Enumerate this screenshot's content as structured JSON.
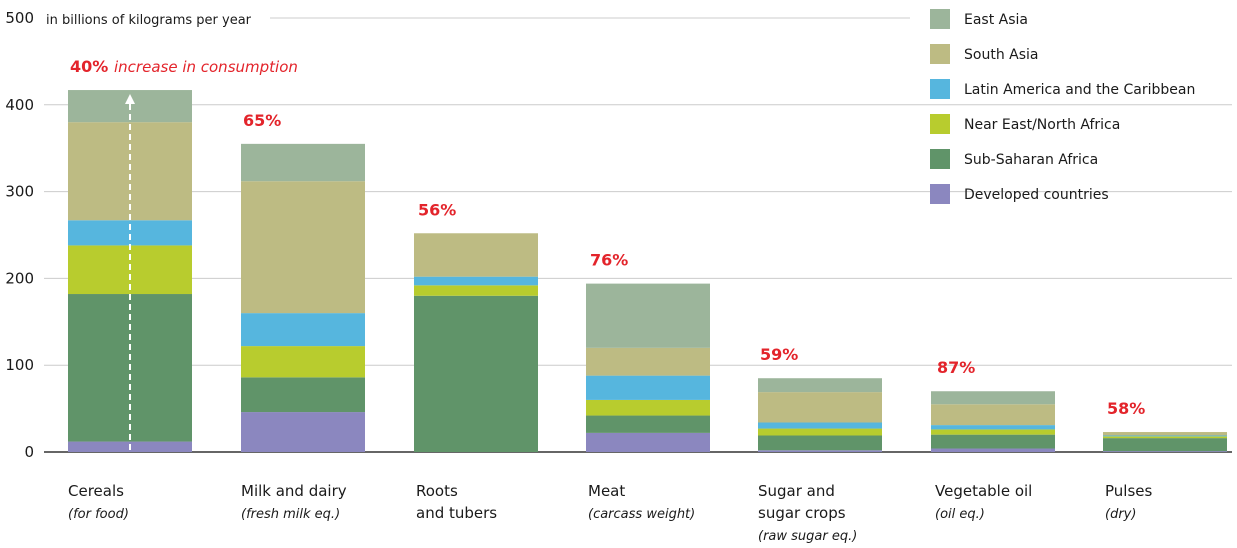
{
  "chart_data": {
    "type": "bar",
    "stacked": true,
    "unit_label": "in billions of kilograms per year",
    "ylim": [
      0,
      500
    ],
    "yticks": [
      0,
      100,
      200,
      300,
      400,
      500
    ],
    "grid": true,
    "legend_position": "top-right",
    "annotation": {
      "category_index": 0,
      "percent": "40%",
      "text": "increase in consumption"
    },
    "categories": [
      {
        "name": "Cereals",
        "sub": "(for food)",
        "increase": "40%"
      },
      {
        "name": "Milk and dairy",
        "sub": "(fresh milk eq.)",
        "increase": "65%"
      },
      {
        "name": "Roots",
        "name2": "and tubers",
        "sub": "",
        "increase": "56%"
      },
      {
        "name": "Meat",
        "sub": "(carcass weight)",
        "increase": "76%"
      },
      {
        "name": "Sugar and",
        "name2": "sugar crops",
        "sub": "(raw sugar eq.)",
        "increase": "59%"
      },
      {
        "name": "Vegetable oil",
        "sub": "(oil eq.)",
        "increase": "87%"
      },
      {
        "name": "Pulses",
        "sub": "(dry)",
        "increase": "58%"
      }
    ],
    "series": [
      {
        "name": "Developed countries",
        "color": "#8b87bf",
        "values": [
          12,
          46,
          0,
          22,
          2,
          4,
          1
        ]
      },
      {
        "name": "Sub-Saharan Africa",
        "color": "#609469",
        "values": [
          170,
          40,
          180,
          20,
          17,
          16,
          15
        ]
      },
      {
        "name": "Near East/North Africa",
        "color": "#b8cc2e",
        "values": [
          56,
          36,
          12,
          18,
          8,
          6,
          2
        ]
      },
      {
        "name": "Latin America and the Caribbean",
        "color": "#56b6de",
        "values": [
          29,
          38,
          10,
          28,
          7,
          5,
          1
        ]
      },
      {
        "name": "South Asia",
        "color": "#bdbb83",
        "values": [
          113,
          152,
          50,
          32,
          35,
          24,
          4
        ]
      },
      {
        "name": "East Asia",
        "color": "#9cb59b",
        "values": [
          37,
          43,
          0,
          74,
          16,
          15,
          0
        ]
      }
    ],
    "legend_order": [
      "East Asia",
      "South Asia",
      "Latin America and the Caribbean",
      "Near East/North Africa",
      "Sub-Saharan Africa",
      "Developed countries"
    ]
  }
}
